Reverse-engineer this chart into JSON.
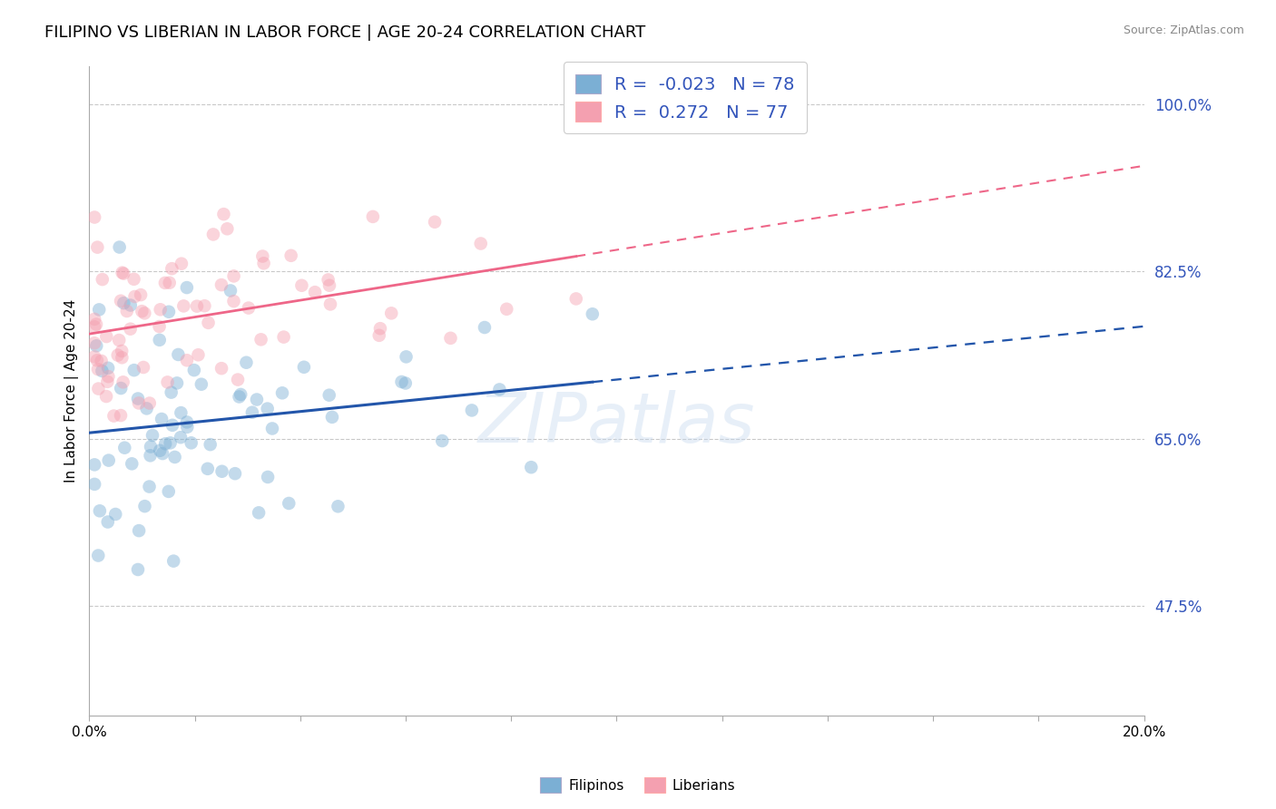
{
  "title": "FILIPINO VS LIBERIAN IN LABOR FORCE | AGE 20-24 CORRELATION CHART",
  "source": "Source: ZipAtlas.com",
  "ylabel": "In Labor Force | Age 20-24",
  "y_ticks": [
    0.475,
    0.65,
    0.825,
    1.0
  ],
  "y_tick_labels": [
    "47.5%",
    "65.0%",
    "82.5%",
    "100.0%"
  ],
  "xlim": [
    0.0,
    0.2
  ],
  "ylim": [
    0.36,
    1.04
  ],
  "filipino_R": -0.023,
  "filipino_N": 78,
  "liberian_R": 0.272,
  "liberian_N": 77,
  "filipino_color": "#7BAFD4",
  "liberian_color": "#F4A0B0",
  "filipino_line_color": "#2255AA",
  "liberian_line_color": "#EE6688",
  "background_color": "#FFFFFF",
  "watermark": "ZIPatlas",
  "dot_size": 110,
  "dot_alpha": 0.45,
  "legend_label_color": "#3355BB"
}
